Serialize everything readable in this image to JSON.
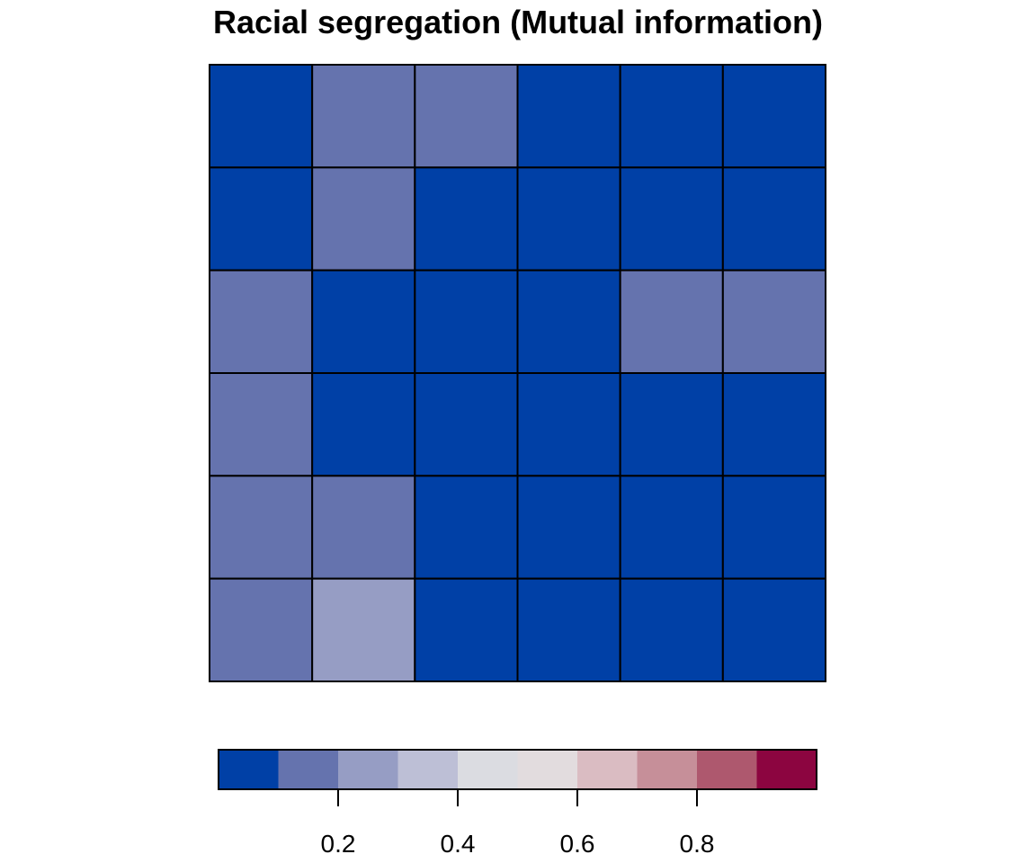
{
  "chart_data": {
    "type": "heatmap",
    "title": "Racial segregation (Mutual information)",
    "xlabel": "",
    "ylabel": "",
    "rows": 6,
    "cols": 6,
    "values": [
      [
        0.05,
        0.15,
        0.15,
        0.05,
        0.05,
        0.05
      ],
      [
        0.05,
        0.15,
        0.05,
        0.05,
        0.05,
        0.05
      ],
      [
        0.15,
        0.05,
        0.05,
        0.05,
        0.15,
        0.15
      ],
      [
        0.15,
        0.05,
        0.05,
        0.05,
        0.05,
        0.05
      ],
      [
        0.15,
        0.15,
        0.05,
        0.05,
        0.05,
        0.05
      ],
      [
        0.15,
        0.25,
        0.05,
        0.05,
        0.05,
        0.05
      ]
    ],
    "color_scale": {
      "min": 0,
      "max": 1,
      "breaks": [
        0,
        0.1,
        0.2,
        0.3,
        0.4,
        0.5,
        0.6,
        0.7,
        0.8,
        0.9,
        1.0
      ],
      "colors": [
        "#0040A6",
        "#6573AE",
        "#969DC4",
        "#BDBFD6",
        "#DBDCE1",
        "#E2DCDE",
        "#DABCC2",
        "#C68F99",
        "#AE586E",
        "#8C0540"
      ]
    },
    "legend": {
      "placement": "bottom",
      "ticks": [
        0.2,
        0.4,
        0.6,
        0.8
      ],
      "tick_labels": [
        "0.2",
        "0.4",
        "0.6",
        "0.8"
      ]
    },
    "grid_lines": true
  }
}
